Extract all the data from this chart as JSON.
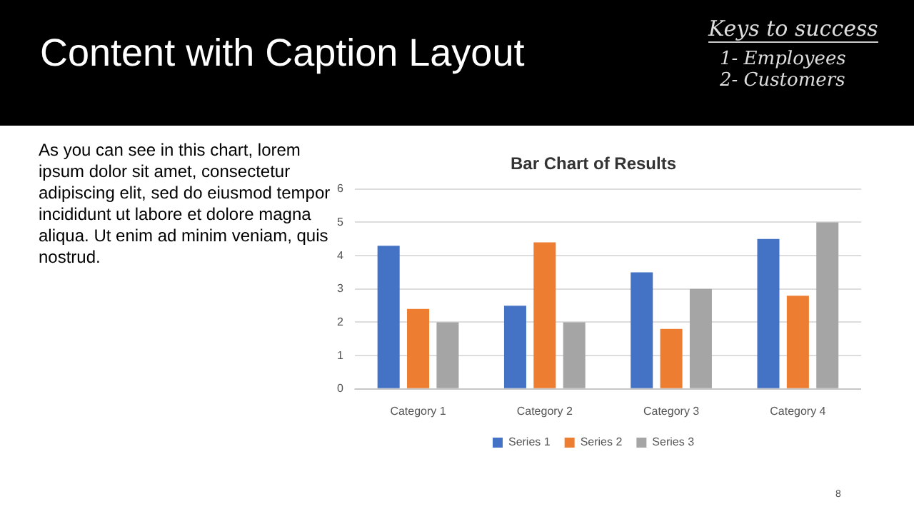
{
  "chart_data": {
    "type": "bar",
    "title": "Bar Chart of Results",
    "categories": [
      "Category 1",
      "Category 2",
      "Category 3",
      "Category 4"
    ],
    "series": [
      {
        "name": "Series 1",
        "color": "#4472c4",
        "values": [
          4.3,
          2.5,
          3.5,
          4.5
        ]
      },
      {
        "name": "Series 2",
        "color": "#ed7d31",
        "values": [
          2.4,
          4.4,
          1.8,
          2.8
        ]
      },
      {
        "name": "Series 3",
        "color": "#a5a5a5",
        "values": [
          2,
          2,
          3,
          5
        ]
      }
    ],
    "ylim": [
      0,
      6
    ],
    "yticks": [
      0,
      1,
      2,
      3,
      4,
      5,
      6
    ],
    "grid": "y",
    "legend": "bottom",
    "annotations": [
      "Content with Caption Layout",
      "As you can see in this chart, lorem ipsum dolor sit amet, consectetur adipiscing elit, sed do eiusmod tempor incididunt ut labore et dolore magna aliqua. Ut enim ad minim veniam, quis nostrud.",
      "Keys to success",
      "1- Employees",
      "2- Customers",
      "8"
    ]
  }
}
